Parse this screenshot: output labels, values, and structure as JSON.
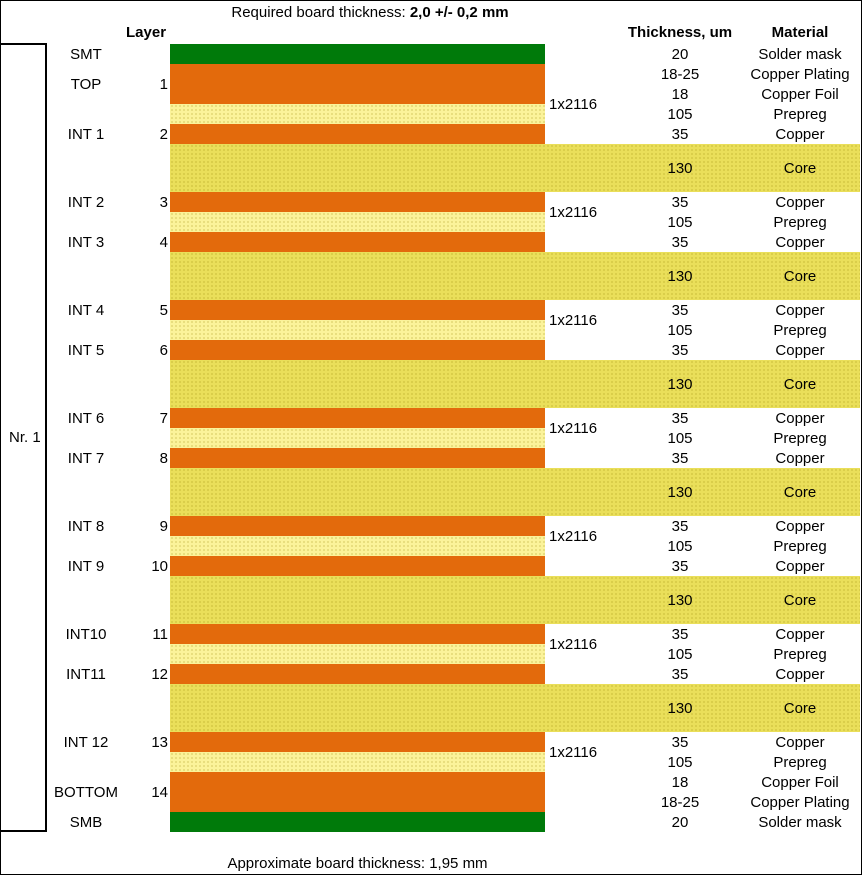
{
  "header": {
    "title_prefix": "Required board thickness:",
    "title_value": "2,0 +/- 0,2 mm",
    "col_layer": "Layer",
    "col_thickness": "Thickness, um",
    "col_material": "Material",
    "stack_label": "Nr. 1"
  },
  "footer": {
    "text": "Approximate board thickness: 1,95 mm"
  },
  "colors": {
    "solder_mask": "#007a0a",
    "copper": "#e36a0c",
    "prepreg": "#fbf39a",
    "core": "#eadf5a"
  },
  "rows": [
    {
      "name": "SMT",
      "num": "",
      "thickness": "20",
      "material": "Solder mask",
      "type": "mask"
    },
    {
      "name": "TOP",
      "num": "1",
      "thickness": "18-25",
      "material": "Copper Plating",
      "type": "copper"
    },
    {
      "name": "",
      "num": "",
      "thickness": "18",
      "material": "Copper Foil",
      "type": "copper"
    },
    {
      "name": "",
      "num": "",
      "thickness": "105",
      "material": "Prepreg",
      "type": "prepreg",
      "prepreg_label": "1x2116"
    },
    {
      "name": "INT 1",
      "num": "2",
      "thickness": "35",
      "material": "Copper",
      "type": "copper"
    },
    {
      "name": "",
      "num": "",
      "thickness": "130",
      "material": "Core",
      "type": "core"
    },
    {
      "name": "INT 2",
      "num": "3",
      "thickness": "35",
      "material": "Copper",
      "type": "copper"
    },
    {
      "name": "",
      "num": "",
      "thickness": "105",
      "material": "Prepreg",
      "type": "prepreg",
      "prepreg_label": "1x2116"
    },
    {
      "name": "INT 3",
      "num": "4",
      "thickness": "35",
      "material": "Copper",
      "type": "copper"
    },
    {
      "name": "",
      "num": "",
      "thickness": "130",
      "material": "Core",
      "type": "core"
    },
    {
      "name": "INT 4",
      "num": "5",
      "thickness": "35",
      "material": "Copper",
      "type": "copper"
    },
    {
      "name": "",
      "num": "",
      "thickness": "105",
      "material": "Prepreg",
      "type": "prepreg",
      "prepreg_label": "1x2116"
    },
    {
      "name": "INT 5",
      "num": "6",
      "thickness": "35",
      "material": "Copper",
      "type": "copper"
    },
    {
      "name": "",
      "num": "",
      "thickness": "130",
      "material": "Core",
      "type": "core"
    },
    {
      "name": "INT 6",
      "num": "7",
      "thickness": "35",
      "material": "Copper",
      "type": "copper"
    },
    {
      "name": "",
      "num": "",
      "thickness": "105",
      "material": "Prepreg",
      "type": "prepreg",
      "prepreg_label": "1x2116"
    },
    {
      "name": "INT 7",
      "num": "8",
      "thickness": "35",
      "material": "Copper",
      "type": "copper"
    },
    {
      "name": "",
      "num": "",
      "thickness": "130",
      "material": "Core",
      "type": "core"
    },
    {
      "name": "INT 8",
      "num": "9",
      "thickness": "35",
      "material": "Copper",
      "type": "copper"
    },
    {
      "name": "",
      "num": "",
      "thickness": "105",
      "material": "Prepreg",
      "type": "prepreg",
      "prepreg_label": "1x2116"
    },
    {
      "name": "INT 9",
      "num": "10",
      "thickness": "35",
      "material": "Copper",
      "type": "copper"
    },
    {
      "name": "",
      "num": "",
      "thickness": "130",
      "material": "Core",
      "type": "core"
    },
    {
      "name": "INT10",
      "num": "11",
      "thickness": "35",
      "material": "Copper",
      "type": "copper"
    },
    {
      "name": "",
      "num": "",
      "thickness": "105",
      "material": "Prepreg",
      "type": "prepreg",
      "prepreg_label": "1x2116"
    },
    {
      "name": "INT11",
      "num": "12",
      "thickness": "35",
      "material": "Copper",
      "type": "copper"
    },
    {
      "name": "",
      "num": "",
      "thickness": "130",
      "material": "Core",
      "type": "core"
    },
    {
      "name": "INT 12",
      "num": "13",
      "thickness": "35",
      "material": "Copper",
      "type": "copper"
    },
    {
      "name": "",
      "num": "",
      "thickness": "105",
      "material": "Prepreg",
      "type": "prepreg",
      "prepreg_label": "1x2116"
    },
    {
      "name": "BOTTOM",
      "num": "14",
      "thickness": "18",
      "material": "Copper Foil",
      "type": "copper"
    },
    {
      "name": "",
      "num": "",
      "thickness": "18-25",
      "material": "Copper Plating",
      "type": "copper"
    },
    {
      "name": "SMB",
      "num": "",
      "thickness": "20",
      "material": "Solder mask",
      "type": "mask"
    }
  ]
}
